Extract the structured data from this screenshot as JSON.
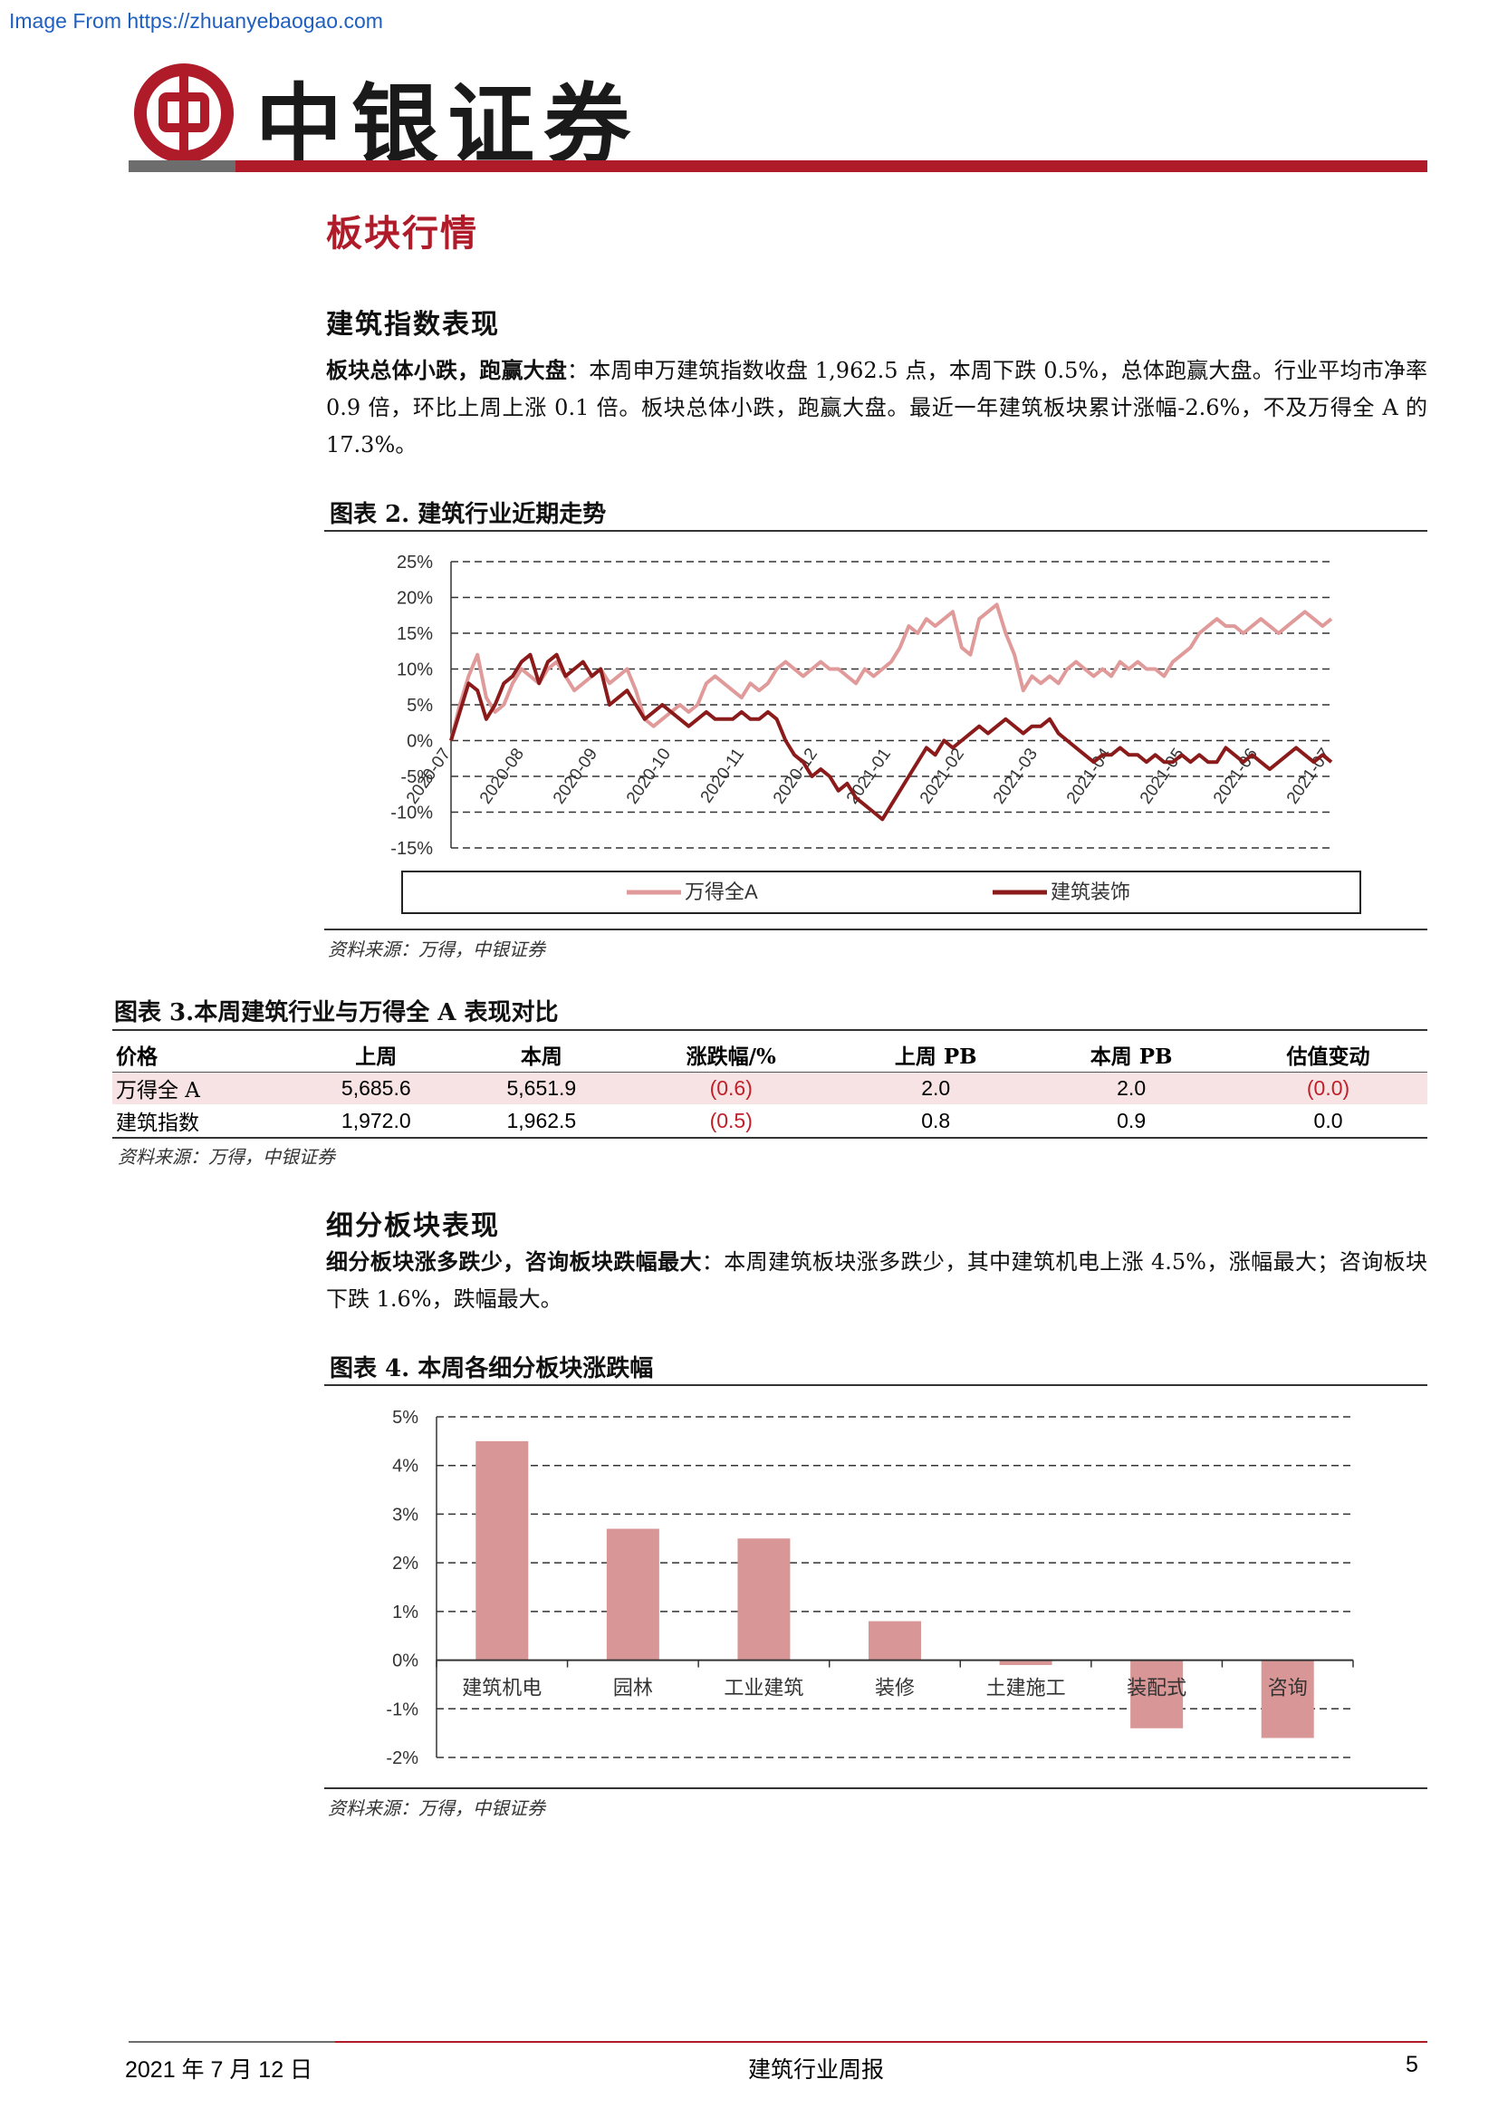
{
  "source_link": "Image From https://zhuanyebaogao.com",
  "brand": "中银证券",
  "section_title": "板块行情",
  "sub1": {
    "title": "建筑指数表现",
    "lead": "板块总体小跌，跑赢大盘",
    "body": "：本周申万建筑指数收盘 1,962.5 点，本周下跌 0.5%，总体跑赢大盘。行业平均市净率 0.9 倍，环比上周上涨 0.1 倍。板块总体小跌，跑赢大盘。最近一年建筑板块累计涨幅-2.6%，不及万得全 A 的 17.3%。"
  },
  "fig2": {
    "title": "图表 2. 建筑行业近期走势",
    "source": "资料来源：万得，中银证券"
  },
  "fig3": {
    "title": "图表 3.本周建筑行业与万得全 A 表现对比",
    "headers": [
      "价格",
      "上周",
      "本周",
      "涨跌幅/%",
      "上周 PB",
      "本周 PB",
      "估值变动"
    ],
    "rows": [
      [
        "万得全 A",
        "5,685.6",
        "5,651.9",
        "(0.6)",
        "2.0",
        "2.0",
        "(0.0)"
      ],
      [
        "建筑指数",
        "1,972.0",
        "1,962.5",
        "(0.5)",
        "0.8",
        "0.9",
        "0.0"
      ]
    ],
    "source": "资料来源：万得，中银证券"
  },
  "sub2": {
    "title": "细分板块表现",
    "lead": "细分板块涨多跌少，咨询板块跌幅最大",
    "body": "：本周建筑板块涨多跌少，其中建筑机电上涨 4.5%，涨幅最大；咨询板块下跌 1.6%，跌幅最大。"
  },
  "fig4": {
    "title": "图表 4. 本周各细分板块涨跌幅",
    "source": "资料来源：万得，中银证券"
  },
  "footer": {
    "date": "2021 年 7 月 12 日",
    "title": "建筑行业周报",
    "page": "5"
  },
  "colors": {
    "brand_red": "#b01b2a",
    "series_a": "#e09a9a",
    "series_b": "#8b1a1a",
    "bar": "#d99696"
  },
  "chart_data": [
    {
      "type": "line",
      "ylim": [
        -15,
        25
      ],
      "yticks": [
        "25%",
        "20%",
        "15%",
        "10%",
        "5%",
        "0%",
        "-5%",
        "-10%",
        "-15%"
      ],
      "x_tick_labels": [
        "2020-07",
        "2020-08",
        "2020-09",
        "2020-10",
        "2020-11",
        "2020-12",
        "2021-01",
        "2021-02",
        "2021-03",
        "2021-04",
        "2021-05",
        "2021-06",
        "2021-07"
      ],
      "legend": "bottom",
      "grid": true,
      "series": [
        {
          "name": "万得全A",
          "values": [
            0,
            5,
            9,
            12,
            6,
            4,
            5,
            8,
            10,
            9,
            8,
            10,
            11,
            9,
            7,
            8,
            9,
            10,
            8,
            9,
            10,
            7,
            3,
            2,
            3,
            4,
            5,
            4,
            5,
            8,
            9,
            8,
            7,
            6,
            8,
            7,
            8,
            10,
            11,
            10,
            9,
            10,
            11,
            10,
            10,
            9,
            8,
            10,
            9,
            10,
            11,
            13,
            16,
            15,
            17,
            16,
            17,
            18,
            13,
            12,
            17,
            18,
            19,
            15,
            12,
            7,
            9,
            8,
            9,
            8,
            10,
            11,
            10,
            9,
            10,
            9,
            11,
            10,
            11,
            10,
            10,
            9,
            11,
            12,
            13,
            15,
            16,
            17,
            16,
            16,
            15,
            16,
            17,
            16,
            15,
            16,
            17,
            18,
            17,
            16,
            17
          ]
        },
        {
          "name": "建筑装饰",
          "values": [
            0,
            4,
            8,
            7,
            3,
            5,
            8,
            9,
            11,
            12,
            8,
            11,
            12,
            9,
            10,
            11,
            9,
            10,
            5,
            6,
            7,
            5,
            3,
            4,
            5,
            4,
            3,
            2,
            3,
            4,
            3,
            3,
            3,
            4,
            3,
            3,
            4,
            3,
            0,
            -2,
            -3,
            -5,
            -4,
            -5,
            -7,
            -6,
            -8,
            -9,
            -10,
            -11,
            -9,
            -7,
            -5,
            -3,
            -1,
            -2,
            0,
            -1,
            0,
            1,
            2,
            1,
            2,
            3,
            2,
            1,
            2,
            2,
            3,
            1,
            0,
            -1,
            -2,
            -3,
            -2,
            -2,
            -1,
            -2,
            -2,
            -3,
            -2,
            -3,
            -3,
            -2,
            -3,
            -2,
            -3,
            -3,
            -1,
            -2,
            -3,
            -2,
            -3,
            -4,
            -3,
            -2,
            -1,
            -2,
            -3,
            -2,
            -3
          ]
        }
      ]
    },
    {
      "type": "bar",
      "categories": [
        "建筑机电",
        "园林",
        "工业建筑",
        "装修",
        "土建施工",
        "装配式",
        "咨询"
      ],
      "values": [
        4.5,
        2.7,
        2.5,
        0.8,
        -0.1,
        -1.4,
        -1.6
      ],
      "ylim": [
        -2,
        5
      ],
      "yticks": [
        "5%",
        "4%",
        "3%",
        "2%",
        "1%",
        "0%",
        "-1%",
        "-2%"
      ],
      "grid": true
    }
  ]
}
